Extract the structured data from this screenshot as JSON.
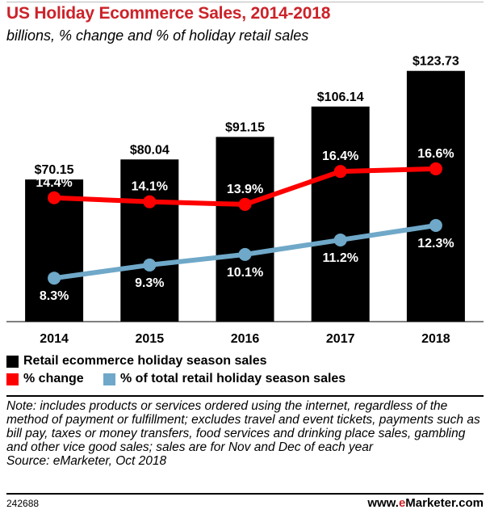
{
  "chart_data": {
    "type": "bar",
    "title": "US Holiday Ecommerce Sales, 2014-2018",
    "subtitle": "billions, % change and % of holiday retail sales",
    "categories": [
      "2014",
      "2015",
      "2016",
      "2017",
      "2018"
    ],
    "series": [
      {
        "name": "Retail ecommerce holiday season sales",
        "kind": "bar",
        "color": "#000000",
        "values": [
          70.15,
          80.04,
          91.15,
          106.14,
          123.73
        ],
        "labels": [
          "$70.15",
          "$80.04",
          "$91.15",
          "$106.14",
          "$123.73"
        ]
      },
      {
        "name": "% change",
        "kind": "line",
        "color": "#ff0000",
        "values": [
          14.4,
          14.1,
          13.9,
          16.4,
          16.6
        ],
        "labels": [
          "14.4%",
          "14.1%",
          "13.9%",
          "16.4%",
          "16.6%"
        ]
      },
      {
        "name": "% of total retail holiday season sales",
        "kind": "line",
        "color": "#6fa8c8",
        "values": [
          8.3,
          9.3,
          10.1,
          11.2,
          12.3
        ],
        "labels": [
          "8.3%",
          "9.3%",
          "10.1%",
          "11.2%",
          "12.3%"
        ]
      }
    ],
    "bar_ylim": [
      0,
      130
    ],
    "line_ylim": [
      5,
      25
    ]
  },
  "legend": {
    "items": [
      {
        "label": "Retail ecommerce holiday season sales",
        "color": "#000000"
      },
      {
        "label": "% change",
        "color": "#ff0000"
      },
      {
        "label": "% of total retail holiday season sales",
        "color": "#6fa8c8"
      }
    ]
  },
  "note": "Note: includes products or services ordered using the internet, regardless of the method of payment or fulfillment; excludes travel and event tickets, payments such as bill pay, taxes or money transfers, food services and drinking place sales, gambling and other vice good sales; sales are for Nov and Dec of each year",
  "source": "Source: eMarketer, Oct 2018",
  "footer": {
    "chart_id": "242688",
    "brand_prefix": "www.",
    "brand_accent": "e",
    "brand_suffix": "Marketer.com"
  }
}
